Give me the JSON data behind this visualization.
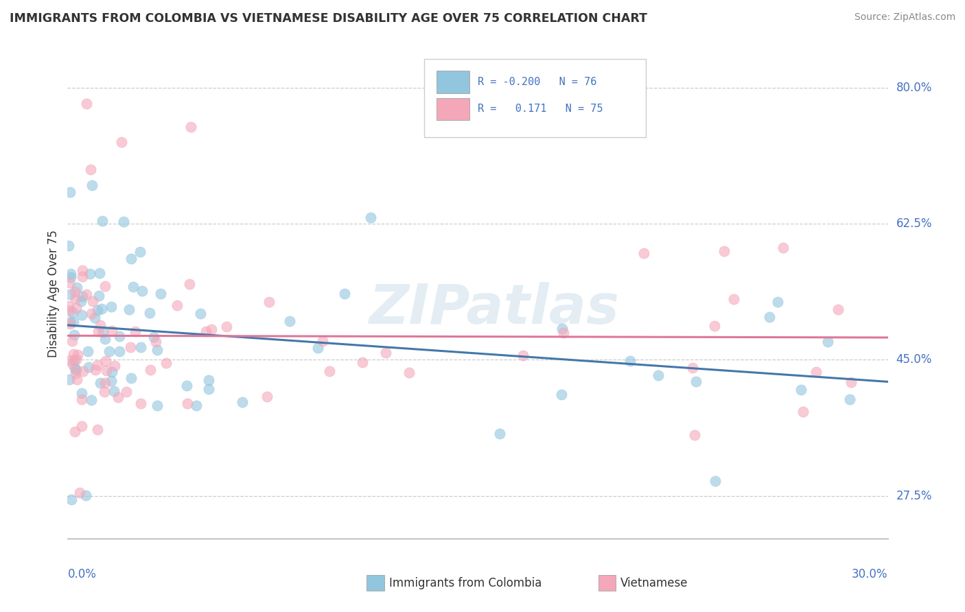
{
  "title": "IMMIGRANTS FROM COLOMBIA VS VIETNAMESE DISABILITY AGE OVER 75 CORRELATION CHART",
  "source": "Source: ZipAtlas.com",
  "ylabel": "Disability Age Over 75",
  "xlim": [
    0.0,
    30.0
  ],
  "ylim": [
    22.0,
    85.0
  ],
  "yticks": [
    27.5,
    45.0,
    62.5,
    80.0
  ],
  "ytick_labels": [
    "27.5%",
    "45.0%",
    "62.5%",
    "80.0%"
  ],
  "color_colombia": "#92c5de",
  "color_vietnamese": "#f4a7b9",
  "color_trend_colombia": "#4477aa",
  "color_trend_vietnamese": "#dd7799",
  "watermark": "ZIPatlas",
  "seed_col": 17,
  "seed_viet": 42,
  "n_col": 76,
  "n_viet": 75,
  "R_col": -0.2,
  "R_viet": 0.171,
  "legend_entries": [
    {
      "label": "R = -0.200   N = 76",
      "color": "#92c5de"
    },
    {
      "label": "R =   0.171   N = 75",
      "color": "#f4a7b9"
    }
  ]
}
